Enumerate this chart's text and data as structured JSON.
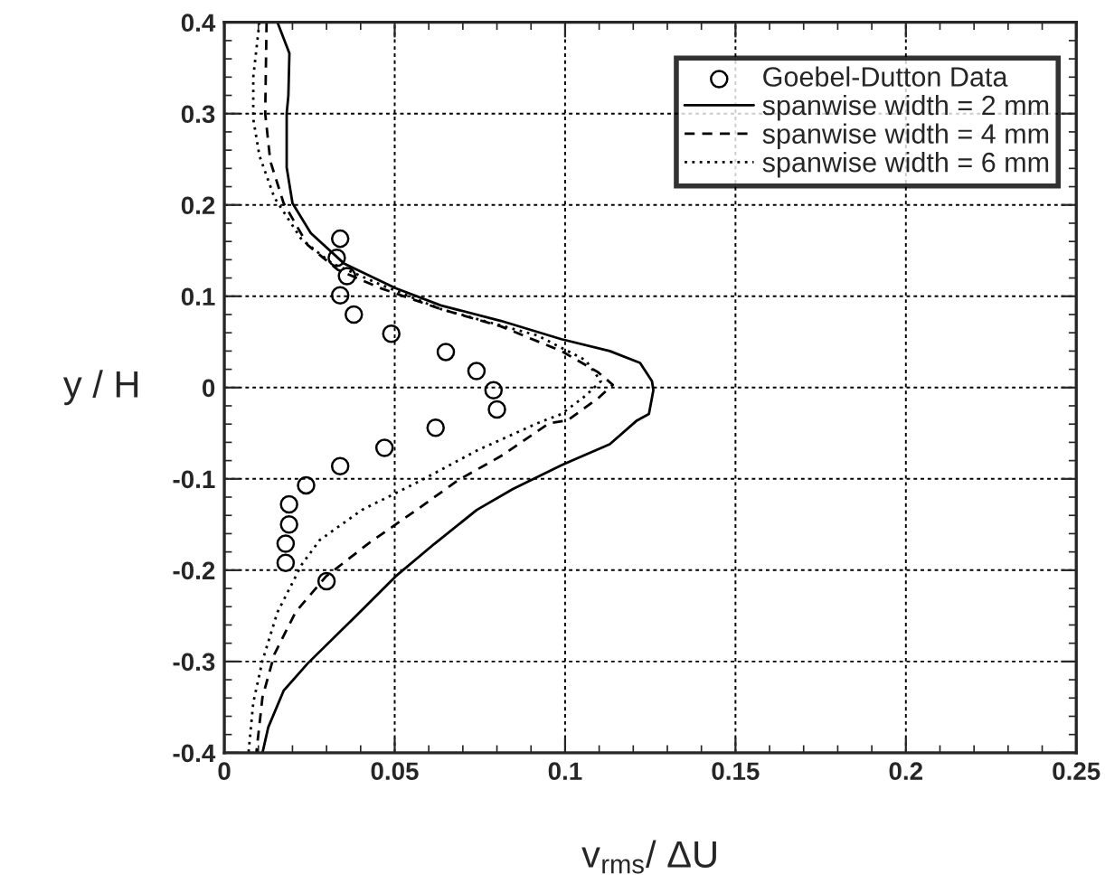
{
  "chart_data": {
    "type": "line",
    "xlabel": "v$_{rms}$/ ΔU",
    "ylabel": "y / H",
    "xlim": [
      0,
      0.25
    ],
    "ylim": [
      -0.4,
      0.4
    ],
    "xticks": [
      0,
      0.05,
      0.1,
      0.15,
      0.2,
      0.25
    ],
    "yticks": [
      -0.4,
      -0.3,
      -0.2,
      -0.1,
      0,
      0.1,
      0.2,
      0.3,
      0.4
    ],
    "grid": true,
    "legend": "top right",
    "series": [
      {
        "name": "Goebel-Dutton Data",
        "type": "scatter",
        "marker": "circle",
        "color": "#000000",
        "x": [
          0.034,
          0.033,
          0.036,
          0.034,
          0.038,
          0.049,
          0.065,
          0.074,
          0.079,
          0.08,
          0.062,
          0.047,
          0.034,
          0.024,
          0.019,
          0.019,
          0.018,
          0.018,
          0.03
        ],
        "values": [
          0.163,
          0.142,
          0.122,
          0.101,
          0.08,
          0.059,
          0.039,
          0.018,
          -0.003,
          -0.024,
          -0.044,
          -0.066,
          -0.086,
          -0.107,
          -0.128,
          -0.15,
          -0.171,
          -0.192,
          -0.212
        ]
      },
      {
        "name": "spanwise width = 2 mm",
        "line_style": "solid",
        "color": "#000000",
        "x": [
          0.0156,
          0.0191,
          0.0188,
          0.0183,
          0.0183,
          0.02,
          0.0254,
          0.0351,
          0.0502,
          0.0635,
          0.0812,
          0.0989,
          0.1131,
          0.122,
          0.1255,
          0.1259,
          0.1246,
          0.1211,
          0.1131,
          0.0989,
          0.0847,
          0.0741,
          0.0617,
          0.0502,
          0.0387,
          0.0245,
          0.0174,
          0.0129,
          0.0112
        ],
        "values": [
          0.4,
          0.366,
          0.32,
          0.3,
          0.241,
          0.202,
          0.169,
          0.136,
          0.109,
          0.09,
          0.073,
          0.053,
          0.04,
          0.027,
          0.007,
          -0.003,
          -0.029,
          -0.036,
          -0.062,
          -0.085,
          -0.111,
          -0.134,
          -0.171,
          -0.207,
          -0.25,
          -0.302,
          -0.332,
          -0.372,
          -0.4
        ]
      },
      {
        "name": "spanwise width = 4 mm",
        "line_style": "dashed",
        "color": "#000000",
        "x": [
          0.0124,
          0.012,
          0.0135,
          0.0174,
          0.0245,
          0.0333,
          0.0457,
          0.0635,
          0.0812,
          0.0989,
          0.1096,
          0.114,
          0.1096,
          0.1007,
          0.0954,
          0.0812,
          0.0688,
          0.0564,
          0.0422,
          0.0298,
          0.0209,
          0.0147,
          0.0112,
          0.0094
        ],
        "values": [
          0.4,
          0.3,
          0.248,
          0.202,
          0.156,
          0.129,
          0.109,
          0.086,
          0.067,
          0.04,
          0.017,
          0.003,
          -0.012,
          -0.036,
          -0.039,
          -0.075,
          -0.101,
          -0.134,
          -0.171,
          -0.207,
          -0.246,
          -0.292,
          -0.339,
          -0.4
        ]
      },
      {
        "name": "spanwise width = 6 mm",
        "line_style": "dotted",
        "color": "#000000",
        "x": [
          0.0103,
          0.0085,
          0.0085,
          0.0103,
          0.0147,
          0.0227,
          0.0316,
          0.0457,
          0.0635,
          0.0919,
          0.106,
          0.1105,
          0.106,
          0.0989,
          0.0919,
          0.0741,
          0.0581,
          0.0404,
          0.028,
          0.0227,
          0.0156,
          0.0112,
          0.0085,
          0.0071
        ],
        "values": [
          0.4,
          0.34,
          0.294,
          0.254,
          0.208,
          0.162,
          0.136,
          0.113,
          0.086,
          0.057,
          0.03,
          0.007,
          -0.009,
          -0.029,
          -0.039,
          -0.069,
          -0.101,
          -0.134,
          -0.167,
          -0.194,
          -0.246,
          -0.299,
          -0.345,
          -0.4
        ]
      }
    ]
  }
}
